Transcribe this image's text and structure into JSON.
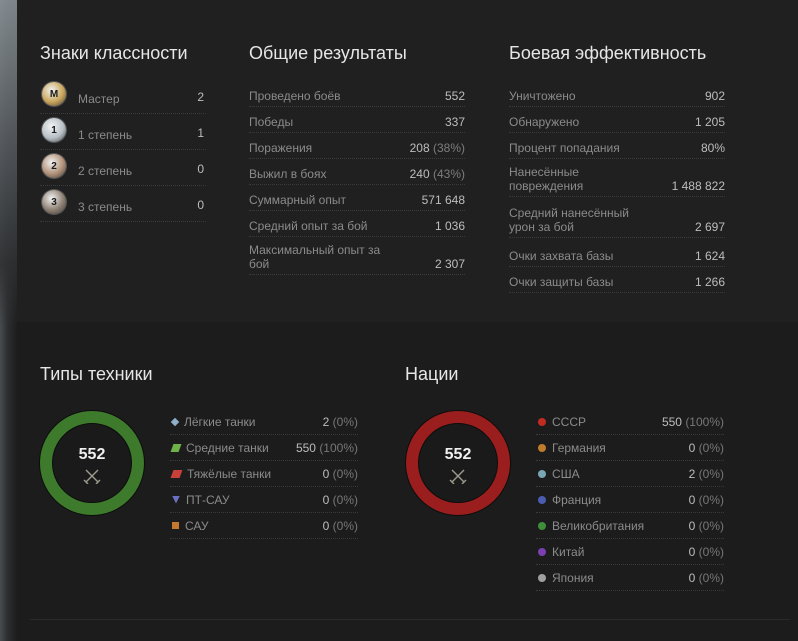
{
  "badges": {
    "title": "Знаки классности",
    "items": [
      {
        "label": "Мастер",
        "value": "2",
        "glyph": "M",
        "color": "#c9a45a"
      },
      {
        "label": "1 степень",
        "value": "1",
        "glyph": "1",
        "color": "#b7c0c6"
      },
      {
        "label": "2 степень",
        "value": "0",
        "glyph": "2",
        "color": "#b09077"
      },
      {
        "label": "3 степень",
        "value": "0",
        "glyph": "3",
        "color": "#8d7f72"
      }
    ]
  },
  "general": {
    "title": "Общие результаты",
    "rows": [
      {
        "label": "Проведено боёв",
        "value": "552",
        "pct": ""
      },
      {
        "label": "Победы",
        "value": "337",
        "pct": ""
      },
      {
        "label": "Поражения",
        "value": "208",
        "pct": "(38%)"
      },
      {
        "label": "Выжил в боях",
        "value": "240",
        "pct": "(43%)"
      },
      {
        "label": "Суммарный опыт",
        "value": "571 648",
        "pct": ""
      },
      {
        "label": "Средний опыт за бой",
        "value": "1 036",
        "pct": ""
      },
      {
        "label": "Максимальный опыт за бой",
        "value": "2 307",
        "pct": ""
      }
    ]
  },
  "combat": {
    "title": "Боевая эффективность",
    "rows": [
      {
        "label": "Уничтожено",
        "value": "902"
      },
      {
        "label": "Обнаружено",
        "value": "1 205"
      },
      {
        "label": "Процент попадания",
        "value": "80%"
      },
      {
        "label": "Нанесённые повреждения",
        "value": "1 488 822"
      },
      {
        "label": "Средний нанесённый урон за бой",
        "value": "2 697"
      },
      {
        "label": "Очки захвата базы",
        "value": "1 624"
      },
      {
        "label": "Очки защиты базы",
        "value": "1 266"
      }
    ]
  },
  "vehicle_types": {
    "title": "Типы техники",
    "total": "552",
    "ring_color": "#3d7a2c",
    "items": [
      {
        "label": "Лёгкие танки",
        "value": "2",
        "pct": "(0%)",
        "icon": "light-tank-icon",
        "color": "#8fb0c8"
      },
      {
        "label": "Средние танки",
        "value": "550",
        "pct": "(100%)",
        "icon": "medium-tank-icon",
        "color": "#6db34a"
      },
      {
        "label": "Тяжёлые танки",
        "value": "0",
        "pct": "(0%)",
        "icon": "heavy-tank-icon",
        "color": "#c8403a"
      },
      {
        "label": "ПТ-САУ",
        "value": "0",
        "pct": "(0%)",
        "icon": "tank-destroyer-icon",
        "color": "#6a6fc0"
      },
      {
        "label": "САУ",
        "value": "0",
        "pct": "(0%)",
        "icon": "spg-icon",
        "color": "#c47a2e"
      }
    ]
  },
  "nations": {
    "title": "Нации",
    "total": "552",
    "ring_color": "#9a1e1e",
    "items": [
      {
        "label": "СССР",
        "value": "550",
        "pct": "(100%)",
        "color": "#c22b22"
      },
      {
        "label": "Германия",
        "value": "0",
        "pct": "(0%)",
        "color": "#c07b2b"
      },
      {
        "label": "США",
        "value": "2",
        "pct": "(0%)",
        "color": "#7aa7b5"
      },
      {
        "label": "Франция",
        "value": "0",
        "pct": "(0%)",
        "color": "#4b5db0"
      },
      {
        "label": "Великобритания",
        "value": "0",
        "pct": "(0%)",
        "color": "#3f8f3a"
      },
      {
        "label": "Китай",
        "value": "0",
        "pct": "(0%)",
        "color": "#7c3fb0"
      },
      {
        "label": "Япония",
        "value": "0",
        "pct": "(0%)",
        "color": "#a0a0a0"
      }
    ]
  }
}
